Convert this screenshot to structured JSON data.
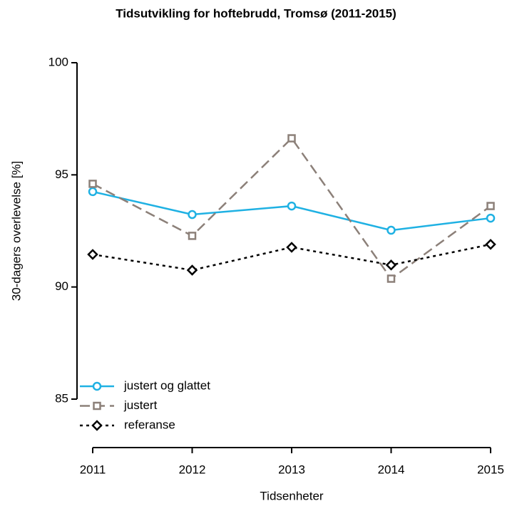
{
  "chart_data": {
    "type": "line",
    "title": "Tidsutvikling for hoftebrudd, Tromsø (2011-2015)",
    "x_label": "Tidsenheter",
    "y_label": "30-dagers overlevelse [%]",
    "x": [
      2011,
      2012,
      2013,
      2014,
      2015
    ],
    "series": [
      {
        "name": "justert og glattet",
        "color": "#1fb1e3",
        "marker": "circle",
        "dash": "solid",
        "values": [
          94.25,
          93.23,
          93.61,
          92.53,
          93.07
        ]
      },
      {
        "name": "justert",
        "color": "#8c8079",
        "marker": "square",
        "dash": "dashed",
        "values": [
          94.6,
          92.28,
          96.63,
          90.37,
          93.61
        ]
      },
      {
        "name": "referanse",
        "color": "#000000",
        "marker": "diamond",
        "dash": "dotted",
        "values": [
          91.45,
          90.75,
          91.77,
          90.98,
          91.9
        ]
      }
    ],
    "xlim": [
      2011,
      2015
    ],
    "xticks": [
      2011,
      2012,
      2013,
      2014,
      2015
    ],
    "ylim": [
      85,
      100
    ],
    "yticks": [
      85,
      90,
      95,
      100
    ],
    "legend": "bottom-left"
  }
}
